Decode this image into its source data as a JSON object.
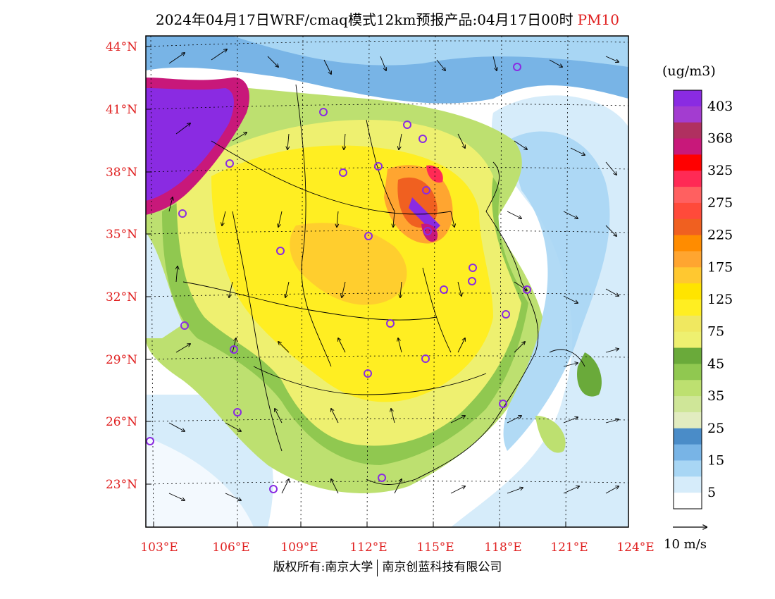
{
  "title": {
    "main": "2024年04月17日WRF/cmaq模式12km预报产品:04月17日00时",
    "pollutant": "PM10"
  },
  "legend": {
    "units": "(ug/m3)",
    "levels": [
      {
        "label": "403",
        "color": "#8a2be2"
      },
      {
        "label": "",
        "color": "#a33cd0"
      },
      {
        "label": "368",
        "color": "#b03060"
      },
      {
        "label": "",
        "color": "#c8187a"
      },
      {
        "label": "325",
        "color": "#ff0000"
      },
      {
        "label": "",
        "color": "#ff2a55"
      },
      {
        "label": "275",
        "color": "#ff6060"
      },
      {
        "label": "",
        "color": "#ff4a3a"
      },
      {
        "label": "225",
        "color": "#f06020"
      },
      {
        "label": "",
        "color": "#ff8c00"
      },
      {
        "label": "175",
        "color": "#ffa530"
      },
      {
        "label": "",
        "color": "#ffc830"
      },
      {
        "label": "125",
        "color": "#ffe400"
      },
      {
        "label": "",
        "color": "#ffee22"
      },
      {
        "label": "75",
        "color": "#f0e860"
      },
      {
        "label": "",
        "color": "#eef070"
      },
      {
        "label": "45",
        "color": "#6aaa3a"
      },
      {
        "label": "",
        "color": "#90c850"
      },
      {
        "label": "35",
        "color": "#bde070"
      },
      {
        "label": "",
        "color": "#cfe698"
      },
      {
        "label": "25",
        "color": "#e2ecc0"
      },
      {
        "label": "",
        "color": "#4a8cc8"
      },
      {
        "label": "15",
        "color": "#78b4e6"
      },
      {
        "label": "",
        "color": "#a8d6f4"
      },
      {
        "label": "5",
        "color": "#d6ecfa"
      },
      {
        "label": "",
        "color": "#ffffff"
      }
    ]
  },
  "axes": {
    "lat_labels": [
      "44°N",
      "41°N",
      "38°N",
      "35°N",
      "32°N",
      "29°N",
      "26°N",
      "23°N"
    ],
    "lon_labels": [
      "103°E",
      "106°E",
      "109°E",
      "112°E",
      "115°E",
      "118°E",
      "121°E",
      "124°E"
    ],
    "label_color": "#e02020"
  },
  "vector_key": {
    "label": "10  m/s"
  },
  "footer": {
    "left": "版权所有:南京大学",
    "right": "南京创蓝科技有限公司"
  }
}
